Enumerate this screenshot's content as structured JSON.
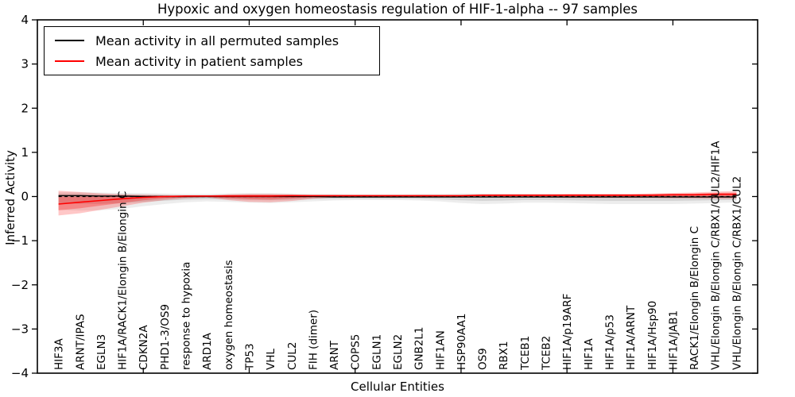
{
  "figure": {
    "title": "Hypoxic and oxygen homeostasis regulation of HIF-1-alpha -- 97 samples",
    "ylabel": "Inferred Activity",
    "xlabel": "Cellular Entities"
  },
  "legend": {
    "items": [
      {
        "label": "Mean activity in all permuted samples",
        "color": "#000000"
      },
      {
        "label": "Mean activity in patient samples",
        "color": "#ff0000"
      }
    ]
  },
  "chart_data": {
    "type": "line",
    "title": "Hypoxic and oxygen homeostasis regulation of HIF-1-alpha -- 97 samples",
    "xlabel": "Cellular Entities",
    "ylabel": "Inferred Activity",
    "ylim": [
      -4,
      4
    ],
    "y_ticks": [
      4,
      3,
      2,
      1,
      0,
      -1,
      -2,
      -3,
      -4
    ],
    "x_axis": {
      "numeric_range": [
        0,
        34
      ],
      "ticks": [
        5,
        10,
        15,
        20,
        25,
        30
      ],
      "tick_labels_shown": false
    },
    "grid": false,
    "legend_position": "upper left",
    "categories": [
      "HIF3A",
      "ARNT/IPAS",
      "EGLN3",
      "HIF1A/RACK1/Elongin B/Elongin C",
      "CDKN2A",
      "PHD1-3/OS9",
      "response to hypoxia",
      "ARD1A",
      "oxygen homeostasis",
      "TP53",
      "VHL",
      "CUL2",
      "FIH (dimer)",
      "ARNT",
      "COPS5",
      "EGLN1",
      "EGLN2",
      "GNB2L1",
      "HIF1AN",
      "HSP90AA1",
      "OS9",
      "RBX1",
      "TCEB1",
      "TCEB2",
      "HIF1A/p19ARF",
      "HIF1A",
      "HIF1A/p53",
      "HIF1A/ARNT",
      "HIF1A/Hsp90",
      "HIF1A/JAB1",
      "RACK1/Elongin B/Elongin C",
      "VHL/Elongin B/Elongin C/RBX1/CUL2/HIF1A",
      "VHL/Elongin B/Elongin C/RBX1/CUL2"
    ],
    "series": [
      {
        "name": "Mean activity in all permuted samples",
        "color": "#000000",
        "style": "solid",
        "values": [
          0.02,
          0.02,
          0.01,
          0.01,
          0.0,
          0.0,
          0.0,
          0.0,
          0.0,
          0.0,
          0.0,
          0.0,
          0.0,
          -0.01,
          -0.01,
          -0.01,
          -0.01,
          -0.01,
          -0.01,
          -0.01,
          -0.01,
          -0.01,
          -0.01,
          -0.01,
          -0.01,
          -0.01,
          -0.01,
          -0.01,
          -0.01,
          -0.01,
          -0.01,
          -0.01,
          -0.01
        ]
      },
      {
        "name": "Mean activity in patient samples",
        "color": "#ff0000",
        "style": "solid",
        "values": [
          -0.17,
          -0.13,
          -0.09,
          -0.05,
          -0.02,
          0.0,
          0.01,
          0.01,
          0.01,
          0.01,
          0.01,
          0.02,
          0.02,
          0.02,
          0.02,
          0.02,
          0.02,
          0.02,
          0.02,
          0.02,
          0.03,
          0.03,
          0.03,
          0.03,
          0.03,
          0.03,
          0.03,
          0.03,
          0.03,
          0.04,
          0.04,
          0.05,
          0.05
        ]
      },
      {
        "name": "zero-reference",
        "color": "#000000",
        "style": "dashed",
        "constant": 0
      }
    ],
    "bands": [
      {
        "name": "permuted-samples-spread",
        "color": "#000000",
        "outer_alpha": 0.07,
        "inner_alpha": 0.1,
        "upper": [
          0.1,
          0.1,
          0.09,
          0.08,
          0.08,
          0.07,
          0.06,
          0.06,
          0.07,
          0.08,
          0.08,
          0.07,
          0.06,
          0.06,
          0.05,
          0.05,
          0.05,
          0.06,
          0.06,
          0.07,
          0.07,
          0.06,
          0.06,
          0.06,
          0.05,
          0.05,
          0.05,
          0.05,
          0.05,
          0.05,
          0.05,
          0.05,
          0.05
        ],
        "lower": [
          -0.3,
          -0.32,
          -0.31,
          -0.28,
          -0.22,
          -0.17,
          -0.13,
          -0.11,
          -0.12,
          -0.14,
          -0.15,
          -0.13,
          -0.11,
          -0.09,
          -0.08,
          -0.08,
          -0.08,
          -0.09,
          -0.11,
          -0.15,
          -0.17,
          -0.16,
          -0.14,
          -0.14,
          -0.15,
          -0.16,
          -0.17,
          -0.17,
          -0.17,
          -0.17,
          -0.16,
          -0.15,
          -0.13
        ]
      },
      {
        "name": "patient-samples-spread",
        "color": "#ff0000",
        "outer_alpha": 0.22,
        "inner_alpha": 0.28,
        "upper": [
          0.13,
          0.1,
          0.07,
          0.05,
          0.04,
          0.03,
          0.02,
          0.02,
          0.05,
          0.06,
          0.06,
          0.05,
          0.03,
          0.02,
          0.02,
          0.02,
          0.02,
          0.02,
          0.02,
          0.03,
          0.04,
          0.05,
          0.05,
          0.05,
          0.06,
          0.06,
          0.06,
          0.06,
          0.07,
          0.08,
          0.09,
          0.11,
          0.12
        ],
        "lower": [
          -0.43,
          -0.38,
          -0.3,
          -0.22,
          -0.14,
          -0.08,
          -0.04,
          -0.02,
          -0.08,
          -0.12,
          -0.13,
          -0.1,
          -0.05,
          -0.02,
          -0.01,
          -0.01,
          -0.01,
          -0.01,
          -0.01,
          -0.01,
          -0.01,
          -0.02,
          -0.02,
          -0.02,
          -0.03,
          -0.03,
          -0.03,
          -0.03,
          -0.03,
          -0.04,
          -0.04,
          -0.05,
          -0.05
        ]
      }
    ]
  }
}
